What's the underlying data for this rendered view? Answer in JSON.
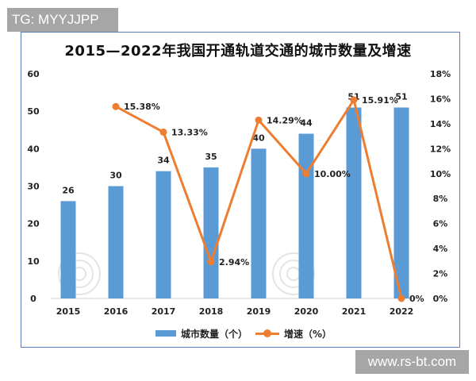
{
  "overlay": {
    "top_tag": "TG: MYYJJPP",
    "bottom_tag": "www.rs-bt.com"
  },
  "chart_data": {
    "type": "bar+line",
    "title": "2015—2022年我国开通轨道交通的城市数量及增速",
    "categories": [
      "2015",
      "2016",
      "2017",
      "2018",
      "2019",
      "2020",
      "2021",
      "2022"
    ],
    "series": [
      {
        "name": "城市数量（个）",
        "type": "bar",
        "axis": "left",
        "color": "#5b9bd5",
        "values": [
          26,
          30,
          34,
          35,
          40,
          44,
          51,
          51
        ],
        "labels": [
          "26",
          "30",
          "34",
          "35",
          "40",
          "44",
          "51",
          "51"
        ]
      },
      {
        "name": "增速（%）",
        "type": "line",
        "axis": "right",
        "color": "#ed7d31",
        "values": [
          null,
          15.38,
          13.33,
          2.94,
          14.29,
          10.0,
          15.91,
          0
        ],
        "labels": [
          "",
          "15.38%",
          "13.33%",
          "2.94%",
          "14.29%",
          "10.00%",
          "15.91%",
          "0%"
        ]
      }
    ],
    "left_axis": {
      "ticks": [
        "0",
        "10",
        "20",
        "30",
        "40",
        "50",
        "60"
      ],
      "ylim": [
        0,
        60
      ]
    },
    "right_axis": {
      "ticks": [
        "0%",
        "2%",
        "4%",
        "6%",
        "8%",
        "10%",
        "12%",
        "14%",
        "16%",
        "18%"
      ],
      "ylim": [
        0,
        18
      ]
    },
    "xlabel": "",
    "ylabel": "",
    "grid": false,
    "legend_position": "bottom",
    "legend": [
      "城市数量（个）",
      "增速（%）"
    ]
  }
}
